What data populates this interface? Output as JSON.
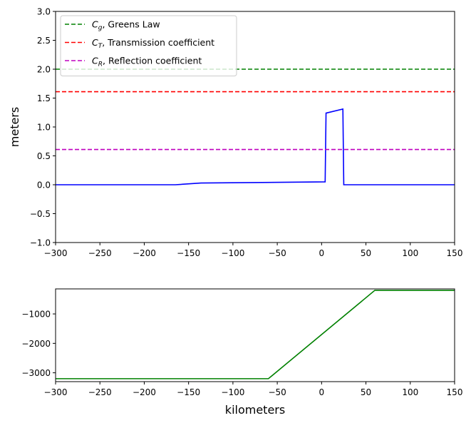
{
  "chart_data": [
    {
      "type": "line",
      "xlabel": "",
      "ylabel": "meters",
      "xlim": [
        -300,
        150
      ],
      "ylim": [
        -1.0,
        3.0
      ],
      "xticks": [
        -300,
        -250,
        -200,
        -150,
        -100,
        -50,
        0,
        50,
        100,
        150
      ],
      "xtick_labels": [
        "−300",
        "−250",
        "−200",
        "−150",
        "−100",
        "−50",
        "0",
        "50",
        "100",
        "150"
      ],
      "yticks": [
        -1.0,
        -0.5,
        0.0,
        0.5,
        1.0,
        1.5,
        2.0,
        2.5,
        3.0
      ],
      "ytick_labels": [
        "−1.0",
        "−0.5",
        "0.0",
        "0.5",
        "1.0",
        "1.5",
        "2.0",
        "2.5",
        "3.0"
      ],
      "grid": false,
      "legend_position": "top-left",
      "series": [
        {
          "color": "#0000ff",
          "style": "solid",
          "x": [
            -300,
            -165,
            -136,
            4,
            5,
            24,
            25,
            150
          ],
          "y": [
            0.0,
            0.0,
            0.03,
            0.05,
            1.24,
            1.31,
            0.0,
            0.0
          ]
        },
        {
          "legend_symbol": "C",
          "legend_subscript": "g",
          "legend_text": ", Greens Law",
          "color": "#008000",
          "style": "dashed",
          "x": [
            -300,
            150
          ],
          "y": [
            2.0,
            2.0
          ]
        },
        {
          "legend_symbol": "C",
          "legend_subscript": "T",
          "legend_text": ", Transmission coefficient",
          "color": "#ff0000",
          "style": "dashed",
          "x": [
            -300,
            150
          ],
          "y": [
            1.61,
            1.61
          ]
        },
        {
          "legend_symbol": "C",
          "legend_subscript": "R",
          "legend_text": ", Reflection coefficient",
          "color": "#bf00bf",
          "style": "dashed",
          "x": [
            -300,
            150
          ],
          "y": [
            0.61,
            0.61
          ]
        }
      ]
    },
    {
      "type": "line",
      "xlabel": "kilometers",
      "ylabel": "",
      "xlim": [
        -300,
        150
      ],
      "ylim": [
        -3300,
        -150
      ],
      "xticks": [
        -300,
        -250,
        -200,
        -150,
        -100,
        -50,
        0,
        50,
        100,
        150
      ],
      "xtick_labels": [
        "−300",
        "−250",
        "−200",
        "−150",
        "−100",
        "−50",
        "0",
        "50",
        "100",
        "150"
      ],
      "yticks": [
        -3000,
        -2000,
        -1000
      ],
      "ytick_labels": [
        "−3000",
        "−2000",
        "−1000"
      ],
      "grid": false,
      "series": [
        {
          "color": "#008000",
          "style": "solid",
          "x": [
            -300,
            -60,
            60,
            150
          ],
          "y": [
            -3200,
            -3200,
            -200,
            -200
          ]
        }
      ]
    }
  ]
}
